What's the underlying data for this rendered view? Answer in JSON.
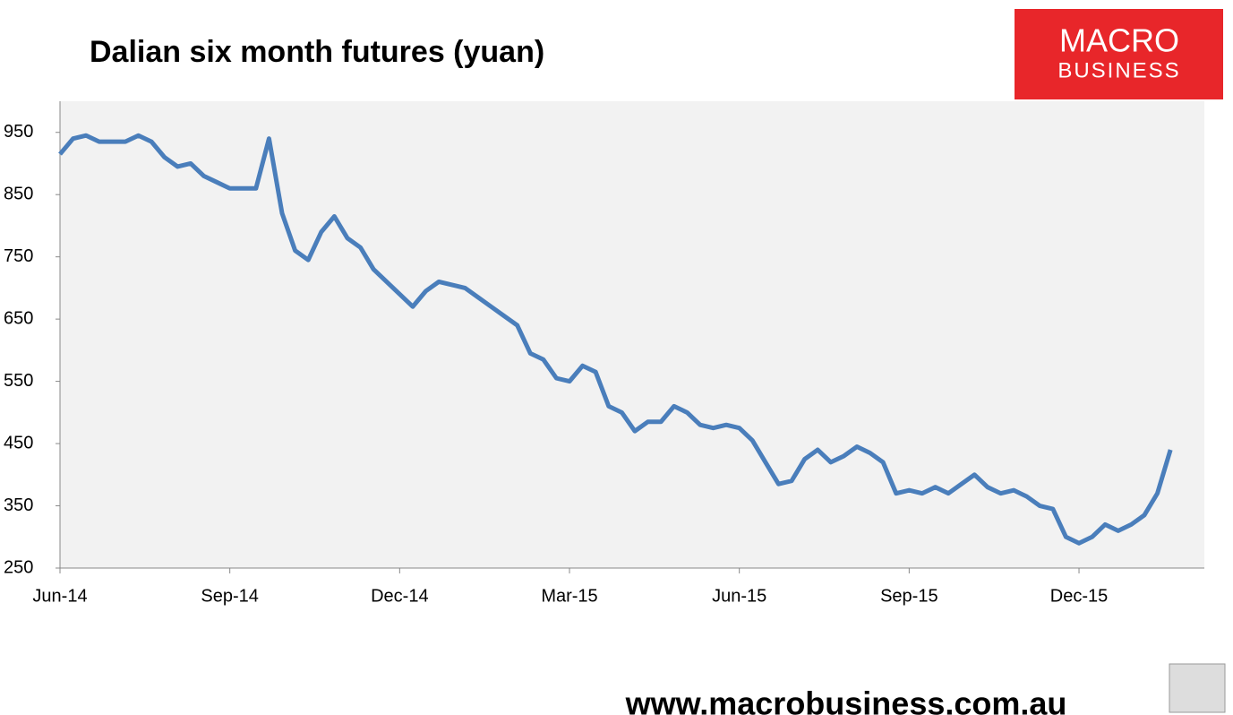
{
  "chart_data": {
    "type": "line",
    "title": "Dalian six month futures (yuan)",
    "categories": [
      "Jun-14",
      null,
      null,
      null,
      null,
      null,
      null,
      null,
      null,
      null,
      null,
      null,
      null,
      "Sep-14",
      null,
      null,
      null,
      null,
      null,
      null,
      null,
      null,
      null,
      null,
      null,
      null,
      "Dec-14",
      null,
      null,
      null,
      null,
      null,
      null,
      null,
      null,
      null,
      null,
      null,
      null,
      "Mar-15",
      null,
      null,
      null,
      null,
      null,
      null,
      null,
      null,
      null,
      null,
      null,
      null,
      "Jun-15",
      null,
      null,
      null,
      null,
      null,
      null,
      null,
      null,
      null,
      null,
      null,
      null,
      "Sep-15",
      null,
      null,
      null,
      null,
      null,
      null,
      null,
      null,
      null,
      null,
      null,
      null,
      "Dec-15",
      null,
      null,
      null,
      null,
      null,
      null,
      null
    ],
    "values": [
      915,
      940,
      945,
      935,
      935,
      935,
      945,
      935,
      910,
      895,
      900,
      880,
      870,
      860,
      860,
      860,
      940,
      820,
      760,
      745,
      790,
      815,
      780,
      765,
      730,
      710,
      690,
      670,
      695,
      710,
      705,
      700,
      685,
      670,
      655,
      640,
      595,
      585,
      555,
      550,
      575,
      565,
      510,
      500,
      470,
      485,
      485,
      510,
      500,
      480,
      475,
      480,
      475,
      455,
      420,
      385,
      390,
      425,
      440,
      420,
      430,
      445,
      435,
      420,
      370,
      375,
      370,
      380,
      370,
      385,
      400,
      380,
      370,
      375,
      365,
      350,
      345,
      300,
      290,
      300,
      320,
      310,
      320,
      335,
      370,
      440
    ],
    "color": "#4a7ebb",
    "ylim": [
      250,
      1000
    ],
    "yticks": [
      250,
      350,
      450,
      550,
      650,
      750,
      850,
      950
    ],
    "grid": false
  },
  "logo": {
    "line1": "MACRO",
    "line2": "BUSINESS"
  },
  "footer": "www.macrobusiness.com.au"
}
